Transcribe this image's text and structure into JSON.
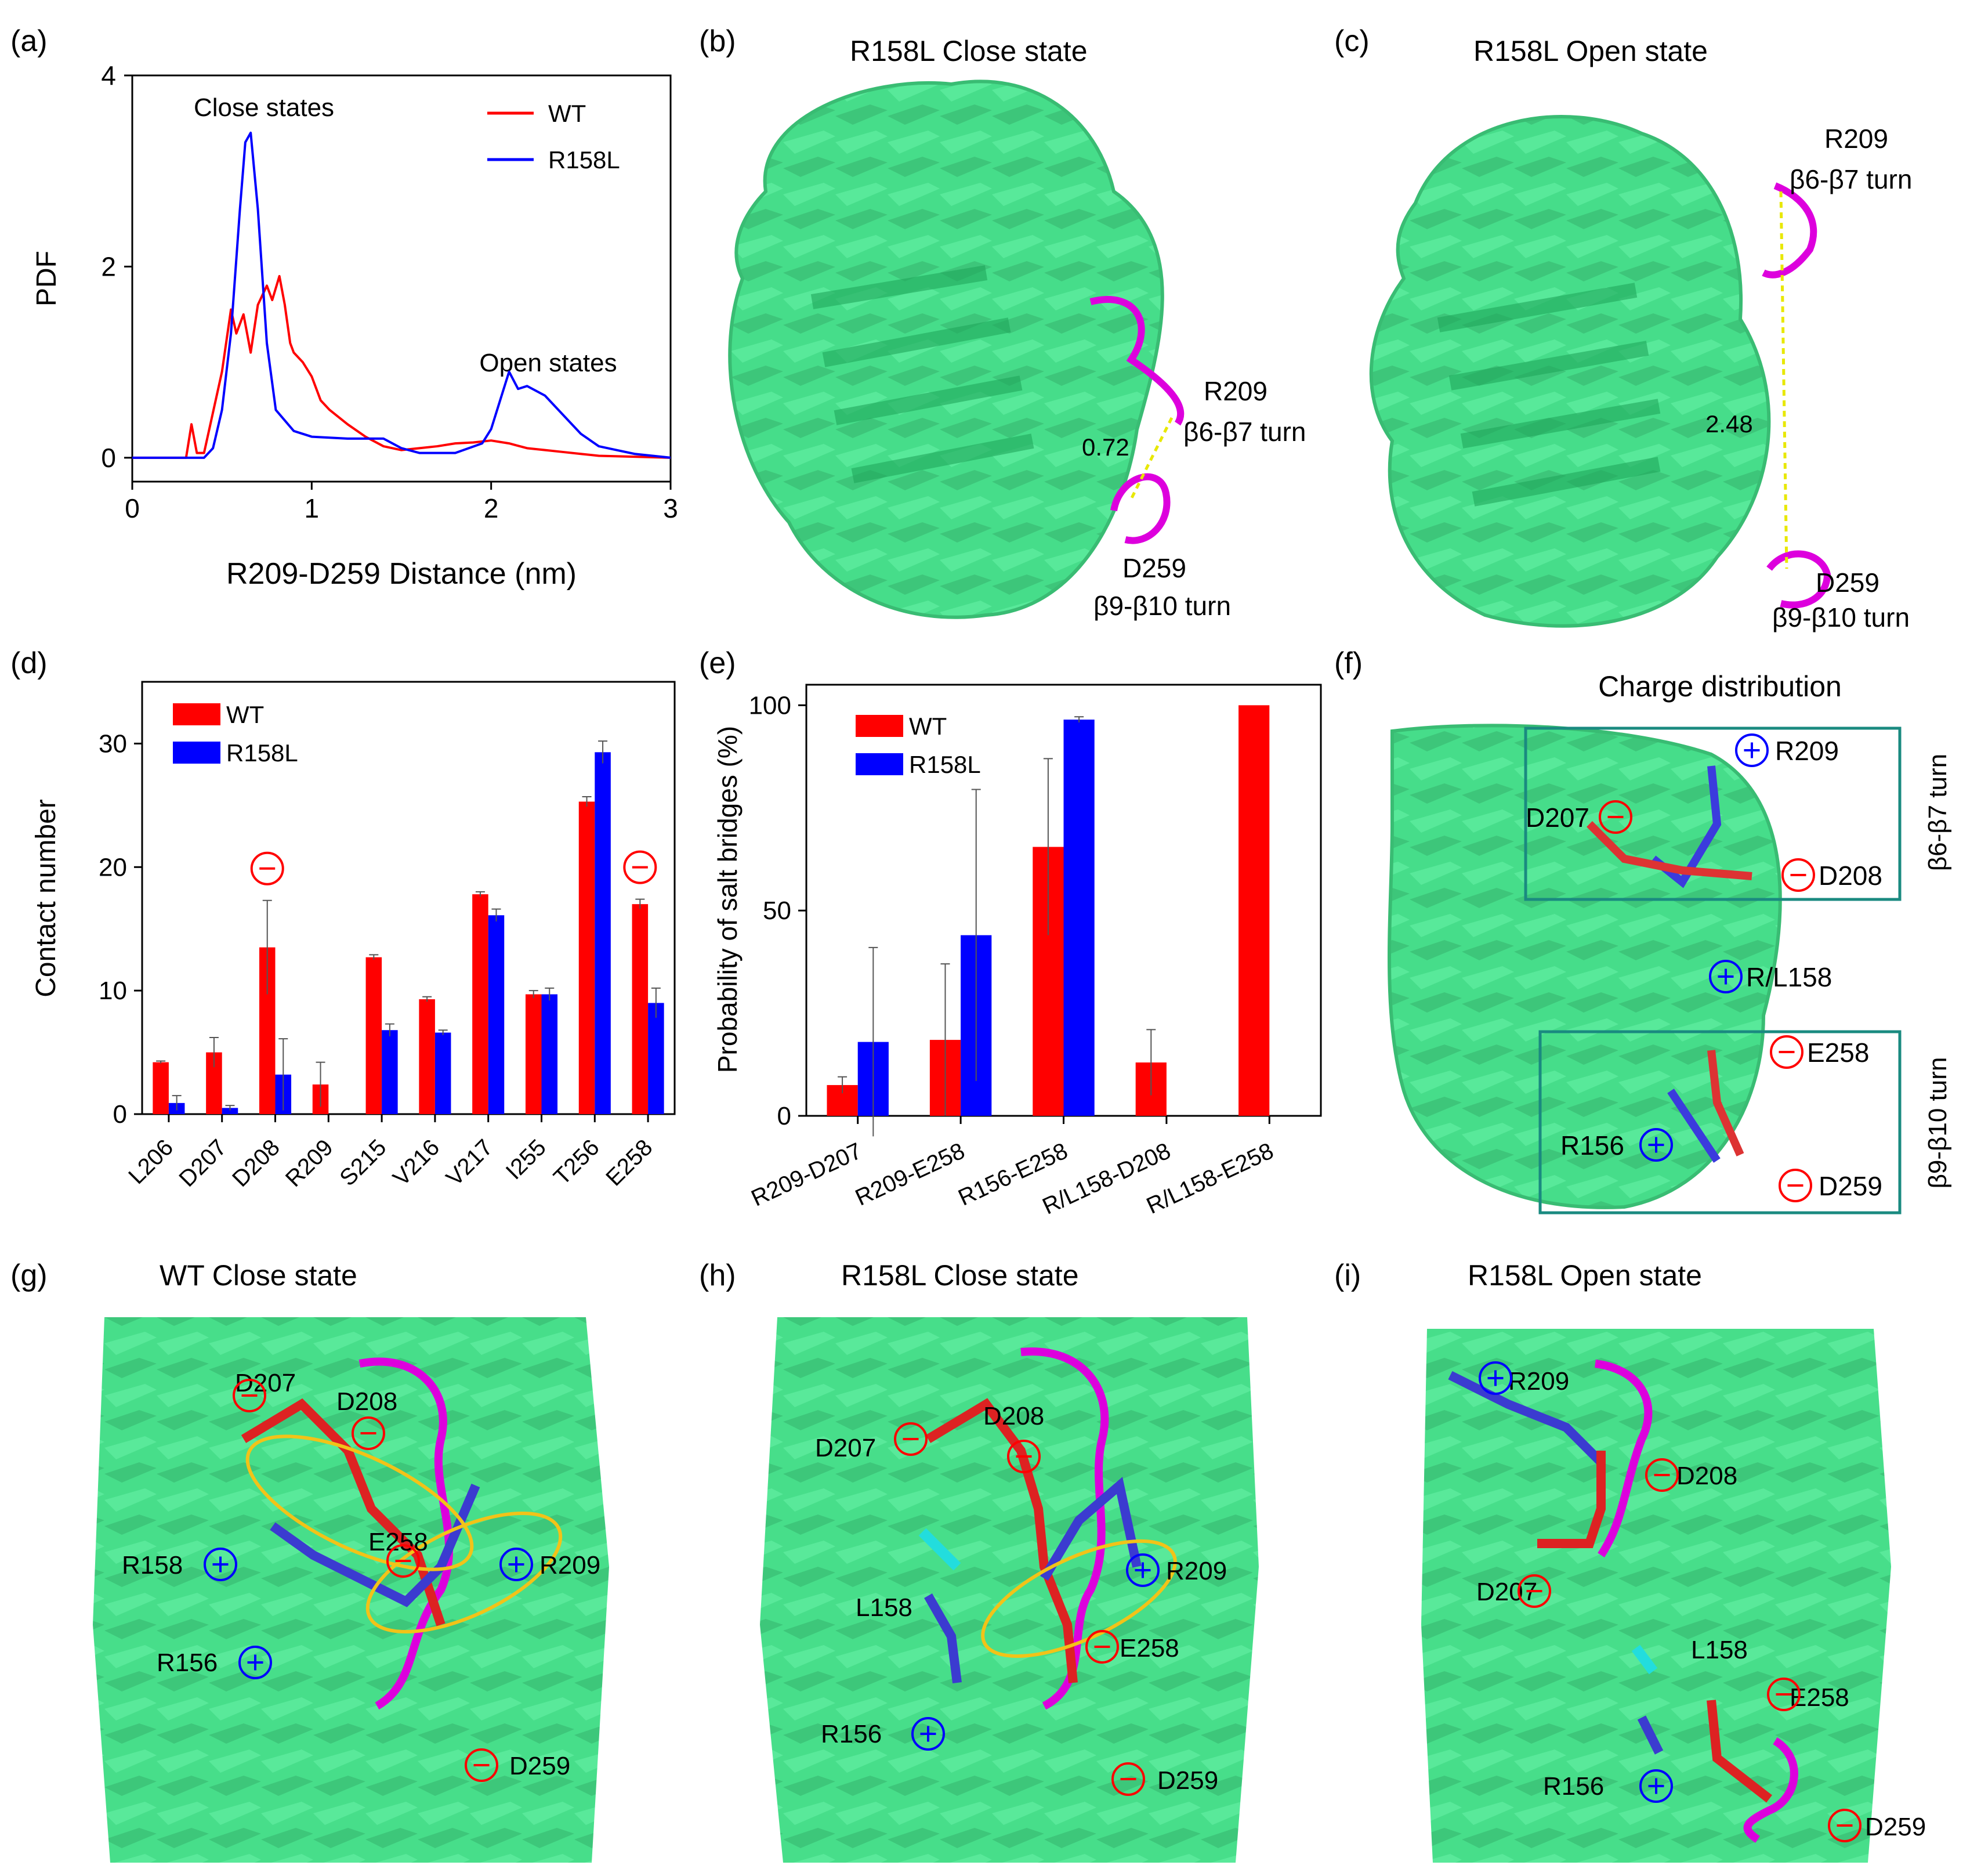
{
  "panels": {
    "a": {
      "label": "(a)"
    },
    "b": {
      "label": "(b)",
      "title": "R158L   Close state"
    },
    "c": {
      "label": "(c)",
      "title": "R158L  Open state"
    },
    "d": {
      "label": "(d)"
    },
    "e": {
      "label": "(e)"
    },
    "f": {
      "label": "(f)",
      "title": "Charge distribution"
    },
    "g": {
      "label": "(g)",
      "title": "WT   Close state"
    },
    "h": {
      "label": "(h)",
      "title": "R158L   Close state"
    },
    "i": {
      "label": "(i)",
      "title": "R158L   Open state"
    }
  },
  "annotations": {
    "b": {
      "r209": "R209",
      "turn1": "β6-β7 turn",
      "dist": "0.72",
      "d259": "D259",
      "turn2": "β9-β10 turn"
    },
    "c": {
      "r209": "R209",
      "turn1": "β6-β7 turn",
      "dist": "2.48",
      "d259": "D259",
      "turn2": "β9-β10 turn"
    },
    "f": {
      "r209": "R209",
      "d207": "D207",
      "d208": "D208",
      "rl158": "R/L158",
      "e258": "E258",
      "r156": "R156",
      "d259": "D259",
      "box1": "β6-β7 turn",
      "box2": "β9-β10 turn"
    },
    "g": {
      "d207": "D207",
      "d208": "D208",
      "r158": "R158",
      "e258": "E258",
      "r209": "R209",
      "r156": "R156",
      "d259": "D259"
    },
    "h": {
      "d207": "D207",
      "d208": "D208",
      "l158": "L158",
      "r209": "R209",
      "e258": "E258",
      "r156": "R156",
      "d259": "D259"
    },
    "i": {
      "r209": "R209",
      "d208": "D208",
      "d207": "D207",
      "l158": "L158",
      "e258": "E258",
      "r156": "R156",
      "d259": "D259"
    }
  },
  "colors": {
    "wt": "#ff0000",
    "r158l": "#0000ff",
    "protein": "#3ddc84",
    "turn": "#dd00dd",
    "box": "#1a8a80",
    "dist": "#e8e800"
  },
  "chart_data": [
    {
      "id": "a",
      "type": "line",
      "xlabel": "R209-D259 Distance (nm)",
      "ylabel": "PDF",
      "xlim": [
        0,
        3
      ],
      "ylim": [
        -0.25,
        4
      ],
      "xticks": [
        "0",
        "1",
        "2",
        "3"
      ],
      "yticks": [
        "0",
        "2",
        "4"
      ],
      "annotations": [
        "Close states",
        "Open states"
      ],
      "legend": "top-right",
      "series": [
        {
          "name": "WT",
          "color": "#ff0000",
          "x": [
            0,
            0.3,
            0.33,
            0.36,
            0.4,
            0.5,
            0.55,
            0.58,
            0.62,
            0.66,
            0.7,
            0.75,
            0.78,
            0.82,
            0.85,
            0.88,
            0.9,
            0.95,
            1.0,
            1.05,
            1.1,
            1.2,
            1.3,
            1.4,
            1.5,
            1.6,
            1.7,
            1.8,
            1.9,
            2.0,
            2.1,
            2.2,
            2.3,
            2.4,
            2.5,
            2.6,
            2.8,
            3.0
          ],
          "y": [
            0,
            0,
            0.35,
            0.05,
            0.05,
            0.9,
            1.55,
            1.3,
            1.5,
            1.1,
            1.6,
            1.8,
            1.65,
            1.9,
            1.6,
            1.2,
            1.1,
            1.0,
            0.85,
            0.6,
            0.5,
            0.35,
            0.22,
            0.12,
            0.08,
            0.1,
            0.12,
            0.15,
            0.16,
            0.18,
            0.15,
            0.1,
            0.08,
            0.06,
            0.04,
            0.02,
            0.01,
            0
          ]
        },
        {
          "name": "R158L",
          "color": "#0000ff",
          "x": [
            0,
            0.4,
            0.45,
            0.5,
            0.55,
            0.6,
            0.63,
            0.66,
            0.7,
            0.75,
            0.8,
            0.9,
            1.0,
            1.2,
            1.4,
            1.5,
            1.6,
            1.8,
            1.95,
            2.0,
            2.05,
            2.1,
            2.15,
            2.2,
            2.3,
            2.4,
            2.5,
            2.6,
            2.7,
            2.8,
            2.9,
            3.0
          ],
          "y": [
            0,
            0,
            0.1,
            0.5,
            1.3,
            2.6,
            3.3,
            3.4,
            2.6,
            1.2,
            0.5,
            0.28,
            0.22,
            0.2,
            0.2,
            0.1,
            0.05,
            0.05,
            0.15,
            0.3,
            0.6,
            0.9,
            0.72,
            0.75,
            0.65,
            0.45,
            0.25,
            0.12,
            0.08,
            0.04,
            0.02,
            0
          ]
        }
      ]
    },
    {
      "id": "d",
      "type": "bar",
      "ylabel": "Contact number",
      "ylim": [
        0,
        35
      ],
      "yticks": [
        "0",
        "10",
        "20",
        "30"
      ],
      "categories": [
        "L206",
        "D207",
        "D208",
        "R209",
        "S215",
        "V216",
        "V217",
        "I255",
        "T256",
        "E258"
      ],
      "legend": "top-left",
      "negative_markers": [
        "D208",
        "E258"
      ],
      "series": [
        {
          "name": "WT",
          "color": "#ff0000",
          "values": [
            4.2,
            5.0,
            13.5,
            2.4,
            12.7,
            9.3,
            17.8,
            9.7,
            25.3,
            17.0
          ],
          "errors": [
            0.1,
            1.2,
            3.8,
            1.8,
            0.2,
            0.2,
            0.2,
            0.3,
            0.4,
            0.4
          ]
        },
        {
          "name": "R158L",
          "color": "#0000ff",
          "values": [
            0.9,
            0.5,
            3.2,
            0,
            6.8,
            6.6,
            16.1,
            9.7,
            29.3,
            9.0
          ],
          "errors": [
            0.6,
            0.2,
            2.9,
            0,
            0.5,
            0.2,
            0.5,
            0.5,
            0.9,
            1.2
          ]
        }
      ]
    },
    {
      "id": "e",
      "type": "bar",
      "ylabel": "Probability of salt bridges (%)",
      "ylim": [
        0,
        105
      ],
      "yticks": [
        "0",
        "50",
        "100"
      ],
      "categories": [
        "R209-D207",
        "R209-E258",
        "R156-E258",
        "R/L158-D208",
        "R/L158-E258"
      ],
      "legend": "top-left",
      "series": [
        {
          "name": "WT",
          "color": "#ff0000",
          "values": [
            7.5,
            18.5,
            65.5,
            13,
            100
          ],
          "errors": [
            2,
            18.5,
            21.5,
            8,
            0
          ]
        },
        {
          "name": "R158L",
          "color": "#0000ff",
          "values": [
            18,
            44,
            96.5,
            0,
            0
          ],
          "errors": [
            23,
            35.5,
            0.7,
            0,
            0
          ]
        }
      ]
    }
  ]
}
